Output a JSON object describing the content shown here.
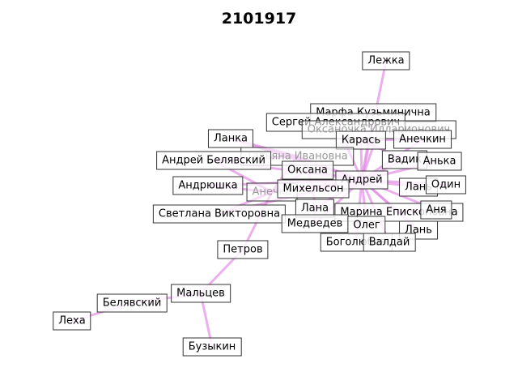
{
  "title": "2101917",
  "colors": {
    "edge": "#e48de6",
    "edge_dense": "#cc55cc"
  },
  "nodes": [
    {
      "id": "lezhka",
      "label": "Лежка"
    },
    {
      "id": "marfa",
      "label": "Марфа Кузьминична"
    },
    {
      "id": "sergey",
      "label": "Сергей Александрович"
    },
    {
      "id": "oksanochka",
      "label": "Оксаночка Илларионович"
    },
    {
      "id": "lanka",
      "label": "Ланка"
    },
    {
      "id": "karas",
      "label": "Карась"
    },
    {
      "id": "anechkin",
      "label": "Анечкин"
    },
    {
      "id": "tatyana",
      "label": "Татьяна Ивановна"
    },
    {
      "id": "andrey_bel",
      "label": "Андрей Белявский"
    },
    {
      "id": "vadik",
      "label": "Вадик"
    },
    {
      "id": "anka",
      "label": "Анька"
    },
    {
      "id": "oksana",
      "label": "Оксана"
    },
    {
      "id": "andrey",
      "label": "Андрей"
    },
    {
      "id": "andryushka",
      "label": "Андрюшка"
    },
    {
      "id": "lan1",
      "label": "Лань"
    },
    {
      "id": "odin",
      "label": "Один"
    },
    {
      "id": "anechka",
      "label": "Анечка"
    },
    {
      "id": "mikhelson",
      "label": "Михельсон"
    },
    {
      "id": "lana",
      "label": "Лана"
    },
    {
      "id": "marina",
      "label": "Марина Епископовна"
    },
    {
      "id": "anya",
      "label": "Аня"
    },
    {
      "id": "svetlana",
      "label": "Светлана Викторовна"
    },
    {
      "id": "medvedev",
      "label": "Медведев"
    },
    {
      "id": "oleg",
      "label": "Олег"
    },
    {
      "id": "lan2",
      "label": "Лань"
    },
    {
      "id": "bogolyubov",
      "label": "Боголюбов"
    },
    {
      "id": "valday",
      "label": "Валдай"
    },
    {
      "id": "petrov",
      "label": "Петров"
    },
    {
      "id": "maltsev",
      "label": "Мальцев"
    },
    {
      "id": "belyavsky",
      "label": "Белявский"
    },
    {
      "id": "lekha",
      "label": "Леха"
    },
    {
      "id": "buzykin",
      "label": "Бузыкин"
    }
  ],
  "edges": [
    [
      "andrey",
      "lezhka"
    ],
    [
      "andrey",
      "marfa"
    ],
    [
      "andrey",
      "sergey"
    ],
    [
      "andrey",
      "oksanochka"
    ],
    [
      "andrey",
      "lanka"
    ],
    [
      "andrey",
      "karas"
    ],
    [
      "andrey",
      "anechkin"
    ],
    [
      "andrey",
      "tatyana"
    ],
    [
      "andrey",
      "andrey_bel"
    ],
    [
      "andrey",
      "vadik"
    ],
    [
      "andrey",
      "anka"
    ],
    [
      "andrey",
      "oksana"
    ],
    [
      "andrey",
      "andryushka"
    ],
    [
      "andrey",
      "lan1"
    ],
    [
      "andrey",
      "odin"
    ],
    [
      "andrey",
      "anechka"
    ],
    [
      "andrey",
      "mikhelson"
    ],
    [
      "andrey",
      "lana"
    ],
    [
      "andrey",
      "marina"
    ],
    [
      "andrey",
      "anya"
    ],
    [
      "andrey",
      "svetlana"
    ],
    [
      "andrey",
      "medvedev"
    ],
    [
      "andrey",
      "oleg"
    ],
    [
      "andrey",
      "lan2"
    ],
    [
      "andrey",
      "bogolyubov"
    ],
    [
      "andrey",
      "valday"
    ],
    [
      "tatyana",
      "andrey_bel"
    ],
    [
      "tatyana",
      "oksana"
    ],
    [
      "tatyana",
      "anechka"
    ],
    [
      "tatyana",
      "lanka"
    ],
    [
      "oksana",
      "anechka"
    ],
    [
      "oksana",
      "mikhelson"
    ],
    [
      "mikhelson",
      "lana"
    ],
    [
      "anechka",
      "svetlana"
    ],
    [
      "anechka",
      "andryushka"
    ],
    [
      "anechka",
      "andrey_bel"
    ],
    [
      "lana",
      "medvedev"
    ],
    [
      "marina",
      "anya"
    ],
    [
      "karas",
      "anechkin"
    ],
    [
      "karas",
      "vadik"
    ],
    [
      "sergey",
      "marfa"
    ],
    [
      "anechka",
      "petrov"
    ],
    [
      "petrov",
      "maltsev"
    ],
    [
      "maltsev",
      "belyavsky"
    ],
    [
      "belyavsky",
      "lekha"
    ],
    [
      "maltsev",
      "buzykin"
    ]
  ]
}
